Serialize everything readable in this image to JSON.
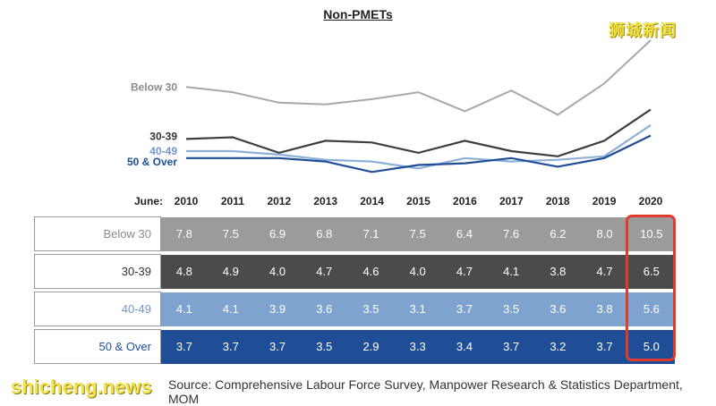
{
  "watermark_top": "狮城新闻",
  "watermark_bottom": "shicheng.news",
  "source_note": "Source: Comprehensive Labour Force Survey, Manpower Research & Statistics Department, MOM",
  "colors": {
    "below30_line": "#a8a8a8",
    "below30_row": "#9b9b9b",
    "age30_39_line": "#3d3d3d",
    "age30_39_row": "#4b4b4b",
    "age40_49_line": "#8db0d9",
    "age40_49_row": "#7fa3cf",
    "age50_line": "#1f4e96",
    "age50_row": "#1f4e96",
    "highlight": "#e03a2a"
  },
  "chart_data": {
    "type": "line",
    "title": "Non-PMETs",
    "x_prefix": "June:",
    "x": [
      "2010",
      "2011",
      "2012",
      "2013",
      "2014",
      "2015",
      "2016",
      "2017",
      "2018",
      "2019",
      "2020"
    ],
    "series": [
      {
        "name": "Below 30",
        "values": [
          7.8,
          7.5,
          6.9,
          6.8,
          7.1,
          7.5,
          6.4,
          7.6,
          6.2,
          8.0,
          10.5
        ]
      },
      {
        "name": "30-39",
        "values": [
          4.8,
          4.9,
          4.0,
          4.7,
          4.6,
          4.0,
          4.7,
          4.1,
          3.8,
          4.7,
          6.5
        ]
      },
      {
        "name": "40-49",
        "values": [
          4.1,
          4.1,
          3.9,
          3.6,
          3.5,
          3.1,
          3.7,
          3.5,
          3.6,
          3.8,
          5.6
        ]
      },
      {
        "name": "50 & Over",
        "values": [
          3.7,
          3.7,
          3.7,
          3.5,
          2.9,
          3.3,
          3.4,
          3.7,
          3.2,
          3.7,
          5.0
        ]
      }
    ],
    "ylim": [
      2.5,
      10.5
    ],
    "grid": false,
    "legend": "left-inline"
  }
}
